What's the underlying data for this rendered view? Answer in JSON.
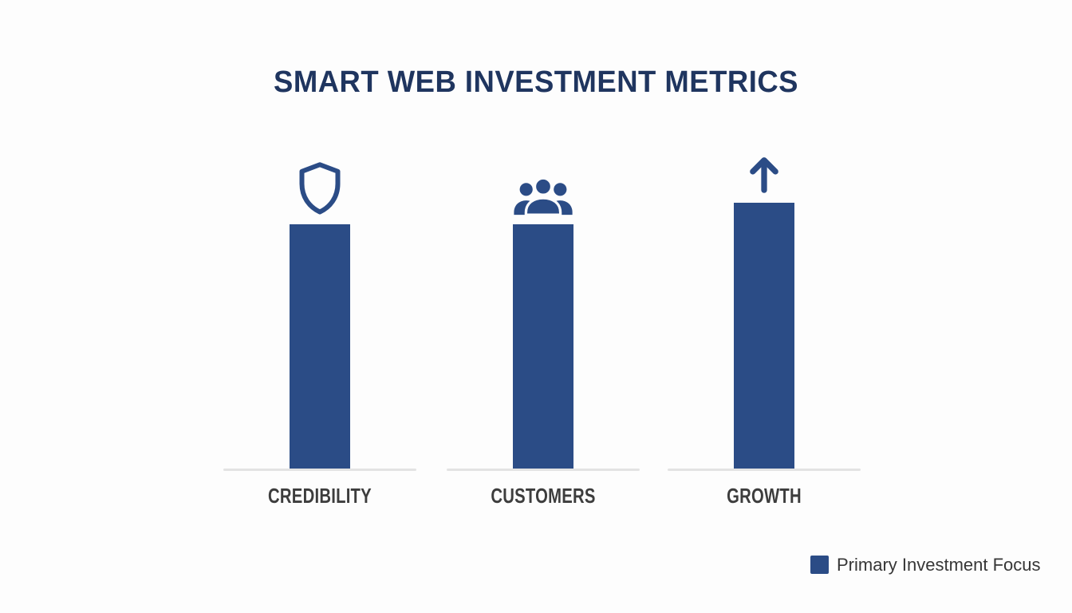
{
  "page": {
    "background": "#fdfdfd"
  },
  "title": "SMART WEB INVESTMENT METRICS",
  "title_color": "#1f355f",
  "chart_data": {
    "type": "bar",
    "title": "SMART WEB INVESTMENT METRICS",
    "categories": [
      "CREDIBILITY",
      "CUSTOMERS",
      "GROWTH"
    ],
    "values": [
      92,
      92,
      100
    ],
    "values_unit": "relative-height-percent-of-max",
    "icons": [
      "shield",
      "people-group",
      "arrow-up"
    ],
    "bar_color": "#2b4c86",
    "icon_color": "#2b4c86",
    "label_color": "#3d3d3d",
    "baseline_color": "#e3e3e3",
    "grid": false,
    "xlabel": "",
    "ylabel": "",
    "legend": {
      "label": "Primary Investment Focus",
      "swatch_color": "#2b4c86",
      "text_color": "#373737",
      "position": "bottom-right"
    }
  }
}
